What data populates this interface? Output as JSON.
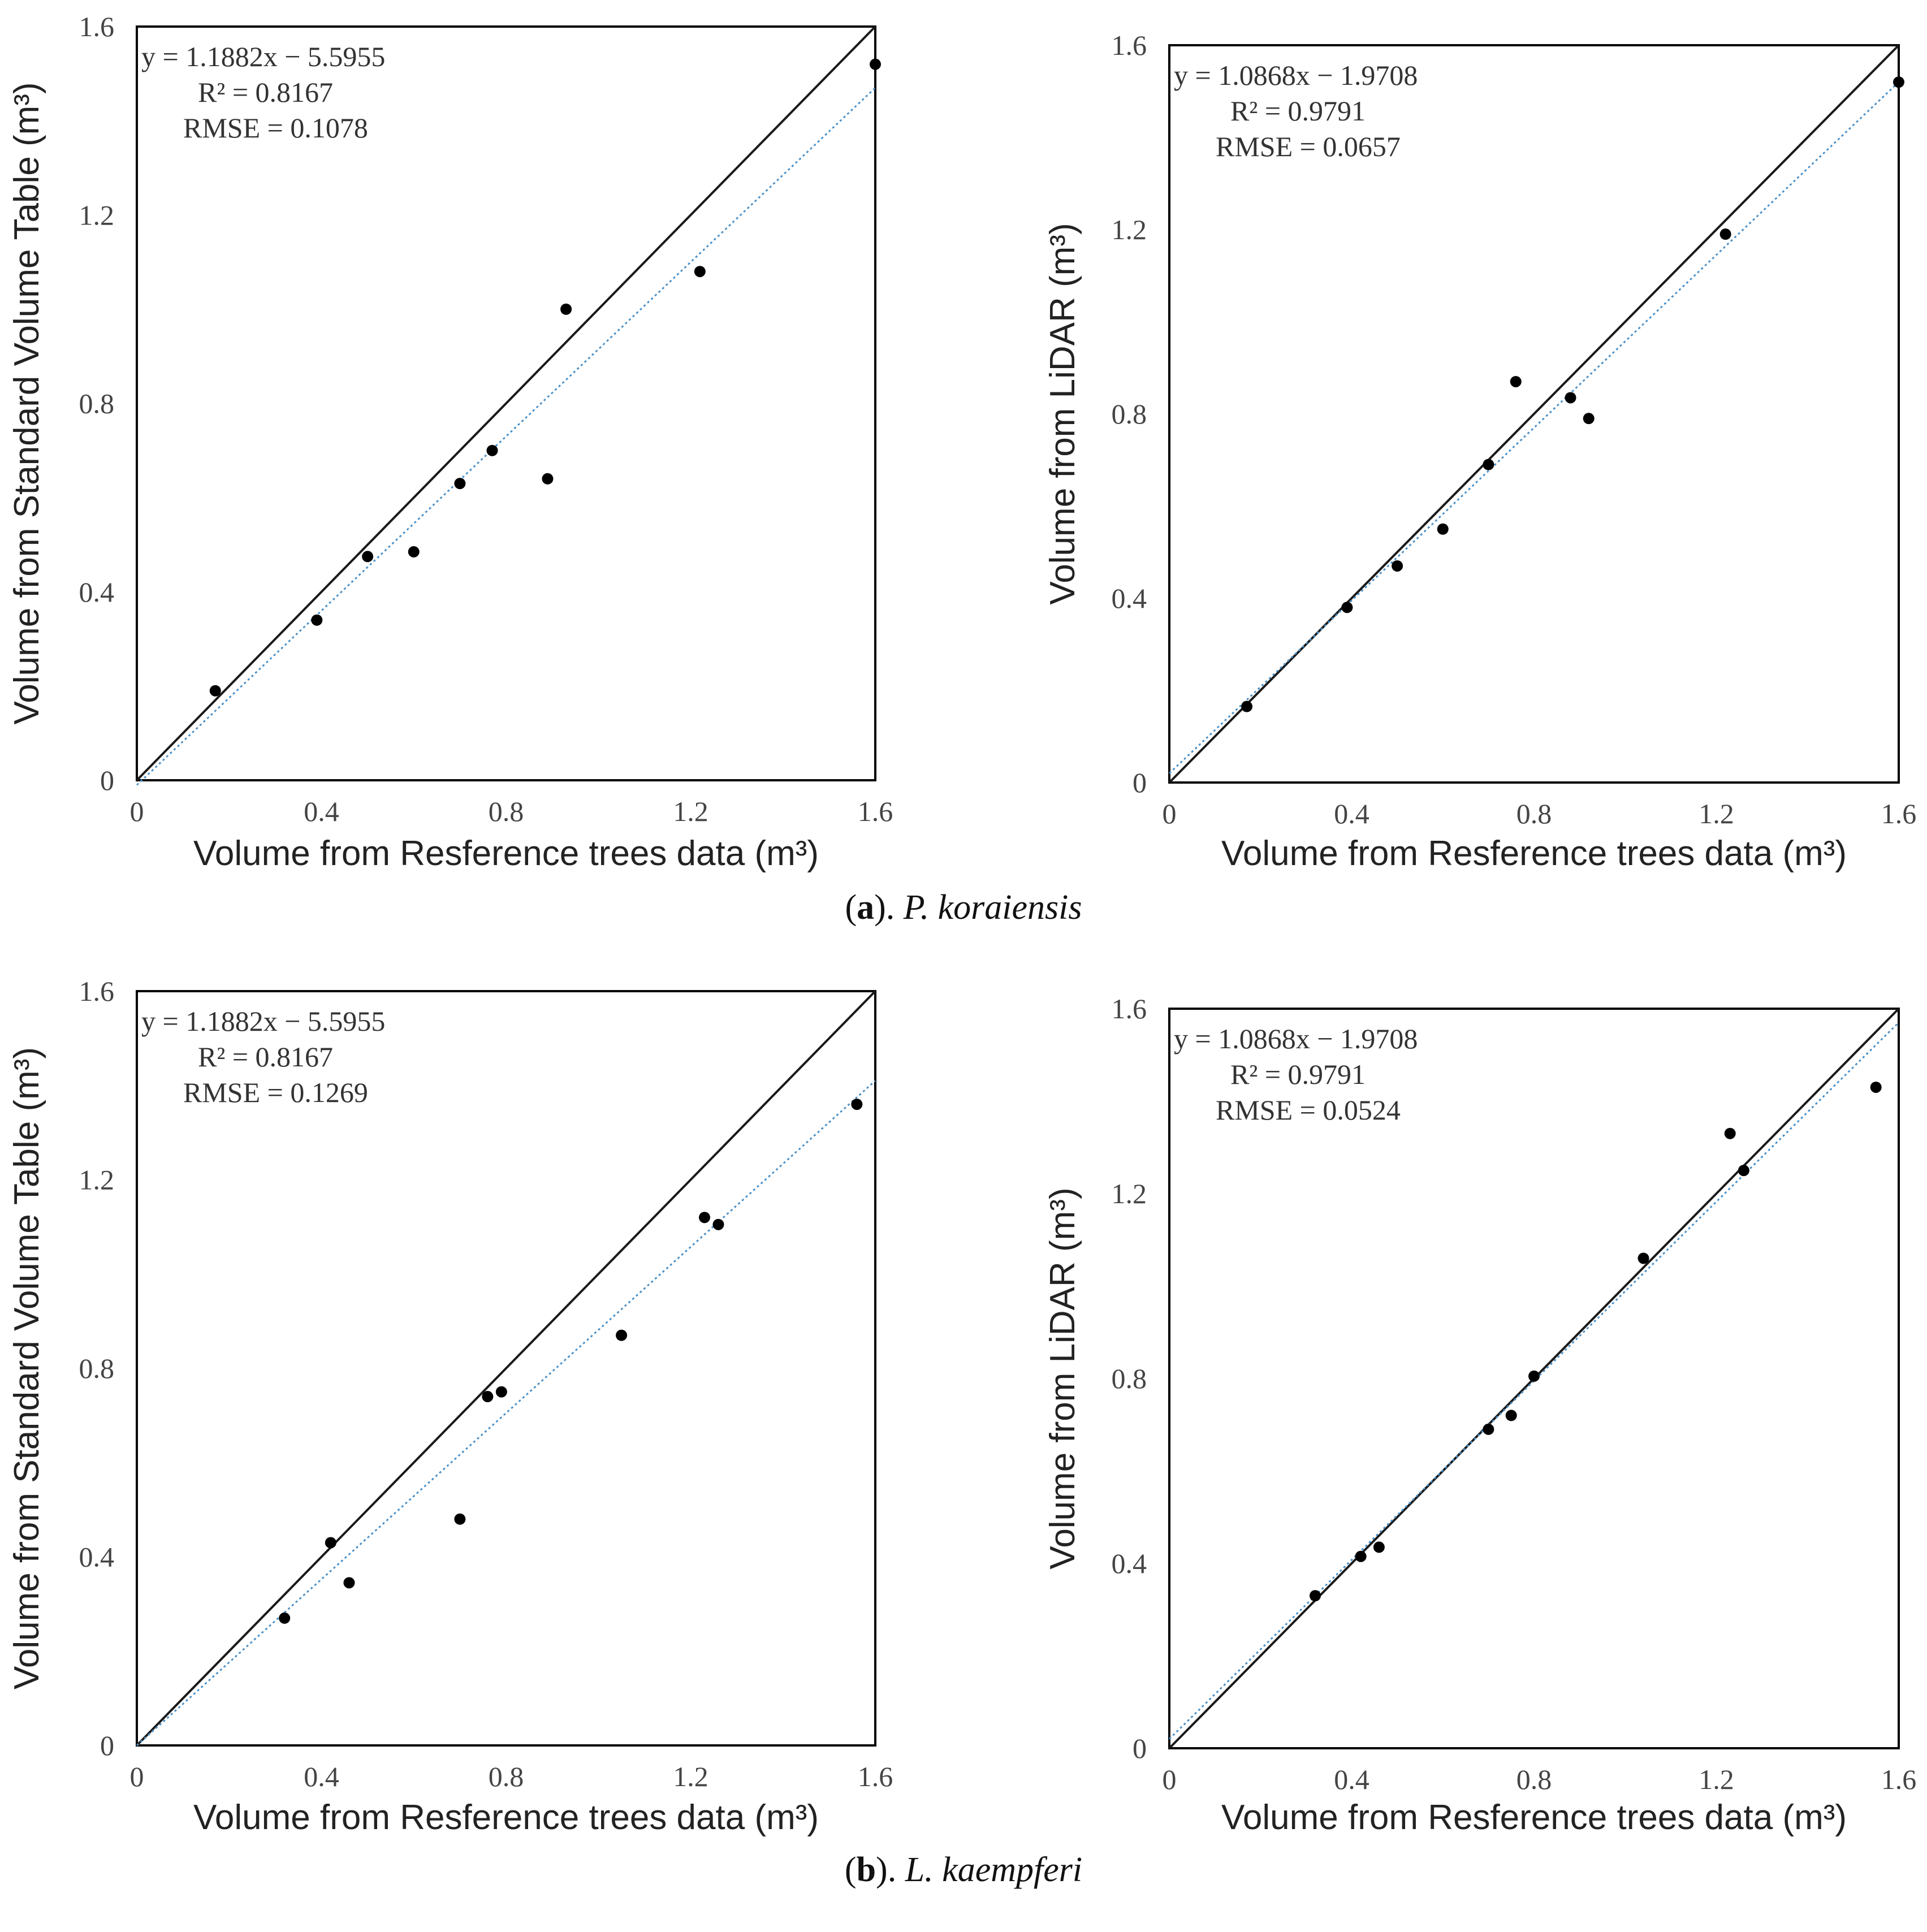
{
  "figure_captions": {
    "a": {
      "letter": "a",
      "species": "P. koraiensis"
    },
    "b": {
      "letter": "b",
      "species": "L. kaempferi"
    }
  },
  "colors": {
    "axis": "#000000",
    "identity_line": "#1a1a1a",
    "trend_line": "#4a90c8",
    "points": "#000000"
  },
  "chart_data": [
    {
      "id": "a-left",
      "type": "scatter",
      "xlabel": "Volume from Resference trees data (m³)",
      "ylabel": "Volume from Standard Volume Table (m³)",
      "xlim": [
        0,
        1.6
      ],
      "ylim": [
        0,
        1.6
      ],
      "xticks": [
        "0",
        "0.4",
        "0.8",
        "1.2",
        "1.6"
      ],
      "yticks": [
        "0",
        "0.4",
        "0.8",
        "1.2",
        "1.6"
      ],
      "annotations": [
        "y = 1.1882x − 5.5955",
        "R²   = 0.8167",
        "RMSE = 0.1078"
      ],
      "trend": {
        "x": [
          0,
          1.6
        ],
        "y": [
          -0.01,
          1.47
        ]
      },
      "points": [
        [
          0.17,
          0.19
        ],
        [
          0.39,
          0.34
        ],
        [
          0.5,
          0.475
        ],
        [
          0.6,
          0.485
        ],
        [
          0.7,
          0.63
        ],
        [
          0.77,
          0.7
        ],
        [
          0.89,
          0.64
        ],
        [
          0.93,
          1.0
        ],
        [
          1.22,
          1.08
        ],
        [
          1.6,
          1.52
        ]
      ]
    },
    {
      "id": "a-right",
      "type": "scatter",
      "xlabel": "Volume from Resference trees data (m³)",
      "ylabel": "Volume from LiDAR (m³)",
      "xlim": [
        0,
        1.6
      ],
      "ylim": [
        0,
        1.6
      ],
      "xticks": [
        "0",
        "0.4",
        "0.8",
        "1.2",
        "1.6"
      ],
      "yticks": [
        "0",
        "0.4",
        "0.8",
        "1.2",
        "1.6"
      ],
      "annotations": [
        "y = 1.0868x − 1.9708",
        "R²   = 0.9791",
        "RMSE = 0.0657"
      ],
      "trend": {
        "x": [
          0,
          1.6
        ],
        "y": [
          0.02,
          1.52
        ]
      },
      "points": [
        [
          0.17,
          0.165
        ],
        [
          0.39,
          0.38
        ],
        [
          0.5,
          0.47
        ],
        [
          0.6,
          0.55
        ],
        [
          0.7,
          0.69
        ],
        [
          0.76,
          0.87
        ],
        [
          0.88,
          0.835
        ],
        [
          0.92,
          0.79
        ],
        [
          1.22,
          1.19
        ],
        [
          1.6,
          1.52
        ]
      ]
    },
    {
      "id": "b-left",
      "type": "scatter",
      "xlabel": "Volume from Resference trees data (m³)",
      "ylabel": "Volume from Standard Volume Table (m³)",
      "xlim": [
        0,
        1.6
      ],
      "ylim": [
        0,
        1.6
      ],
      "xticks": [
        "0",
        "0.4",
        "0.8",
        "1.2",
        "1.6"
      ],
      "yticks": [
        "0",
        "0.4",
        "0.8",
        "1.2",
        "1.6"
      ],
      "annotations": [
        "y = 1.1882x − 5.5955",
        "R²   = 0.8167",
        "RMSE = 0.1269"
      ],
      "trend": {
        "x": [
          0,
          1.6
        ],
        "y": [
          0,
          1.41
        ]
      },
      "points": [
        [
          0.32,
          0.27
        ],
        [
          0.42,
          0.43
        ],
        [
          0.46,
          0.345
        ],
        [
          0.7,
          0.48
        ],
        [
          0.76,
          0.74
        ],
        [
          0.79,
          0.75
        ],
        [
          1.05,
          0.87
        ],
        [
          1.23,
          1.12
        ],
        [
          1.26,
          1.105
        ],
        [
          1.56,
          1.36
        ]
      ]
    },
    {
      "id": "b-right",
      "type": "scatter",
      "xlabel": "Volume from Resference trees data (m³)",
      "ylabel": "Volume from LiDAR (m³)",
      "xlim": [
        0,
        1.6
      ],
      "ylim": [
        0,
        1.6
      ],
      "xticks": [
        "0",
        "0.4",
        "0.8",
        "1.2",
        "1.6"
      ],
      "yticks": [
        "0",
        "0.4",
        "0.8",
        "1.2",
        "1.6"
      ],
      "annotations": [
        "y = 1.0868x − 1.9708",
        "R²   = 0.9791",
        "RMSE = 0.0524"
      ],
      "trend": {
        "x": [
          0,
          1.6
        ],
        "y": [
          0.02,
          1.57
        ]
      },
      "points": [
        [
          0.32,
          0.33
        ],
        [
          0.42,
          0.415
        ],
        [
          0.46,
          0.435
        ],
        [
          0.7,
          0.69
        ],
        [
          0.75,
          0.72
        ],
        [
          0.8,
          0.805
        ],
        [
          1.04,
          1.06
        ],
        [
          1.23,
          1.33
        ],
        [
          1.26,
          1.25
        ],
        [
          1.55,
          1.43
        ]
      ]
    }
  ]
}
